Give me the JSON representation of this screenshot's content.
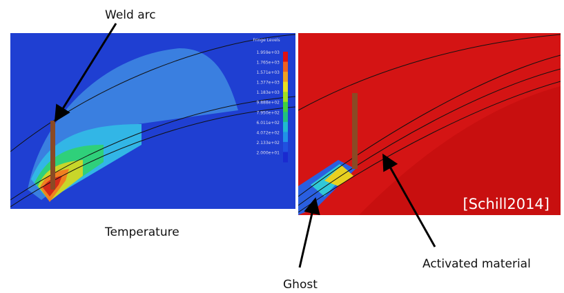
{
  "labels": {
    "weld_arc": "Weld arc",
    "temperature": "Temperature",
    "ghost": "Ghost",
    "activated": "Activated material",
    "citation": "[Schill2014]"
  },
  "legend": {
    "title": "Fringe Levels",
    "levels": [
      "1.959e+03",
      "1.765e+03",
      "1.571e+03",
      "1.377e+03",
      "1.183e+03",
      "9.888e+02",
      "7.950e+02",
      "6.011e+02",
      "4.072e+02",
      "2.133e+02",
      "2.000e+01"
    ]
  }
}
